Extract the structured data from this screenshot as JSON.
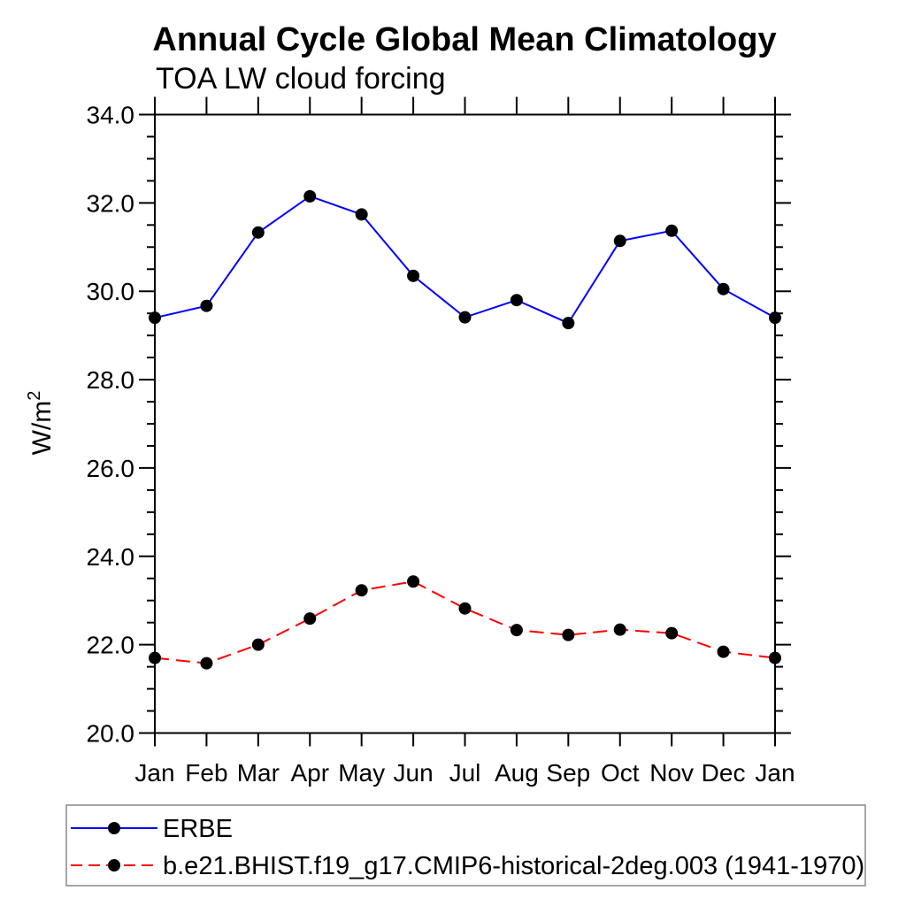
{
  "title": "Annual Cycle Global Mean Climatology",
  "subtitle": "TOA LW cloud forcing",
  "ylabel": {
    "base": "W/m",
    "exp": "2"
  },
  "colors": {
    "axis": "#000000",
    "marker": "#000000",
    "erbe_line": "#0000ff",
    "model_line": "#ff0000",
    "legend_border": "#888888"
  },
  "chart_data": {
    "type": "line",
    "title": "Annual Cycle Global Mean Climatology",
    "subtitle": "TOA LW cloud forcing",
    "xlabel": "",
    "ylabel": "W/m^2",
    "categories": [
      "Jan",
      "Feb",
      "Mar",
      "Apr",
      "May",
      "Jun",
      "Jul",
      "Aug",
      "Sep",
      "Oct",
      "Nov",
      "Dec",
      "Jan"
    ],
    "ylim": [
      20.0,
      34.0
    ],
    "ytick_major_step": 2.0,
    "ytick_minor_step": 0.5,
    "ytick_label_format": "one_decimal",
    "grid": false,
    "legend_position": "bottom-left-box",
    "series": [
      {
        "name": "ERBE",
        "color": "#0000ff",
        "line_style": "solid",
        "marker": "filled-circle",
        "marker_color": "#000000",
        "values": [
          29.4,
          29.67,
          31.33,
          32.15,
          31.74,
          30.35,
          29.41,
          29.8,
          29.28,
          31.14,
          31.37,
          30.05,
          29.4
        ]
      },
      {
        "name": "b.e21.BHIST.f19_g17.CMIP6-historical-2deg.003 (1941-1970)",
        "color": "#ff0000",
        "line_style": "dashed",
        "marker": "filled-circle",
        "marker_color": "#000000",
        "values": [
          21.7,
          21.58,
          22.0,
          22.59,
          23.23,
          23.43,
          22.82,
          22.33,
          22.22,
          22.34,
          22.26,
          21.84,
          21.7
        ]
      }
    ]
  }
}
